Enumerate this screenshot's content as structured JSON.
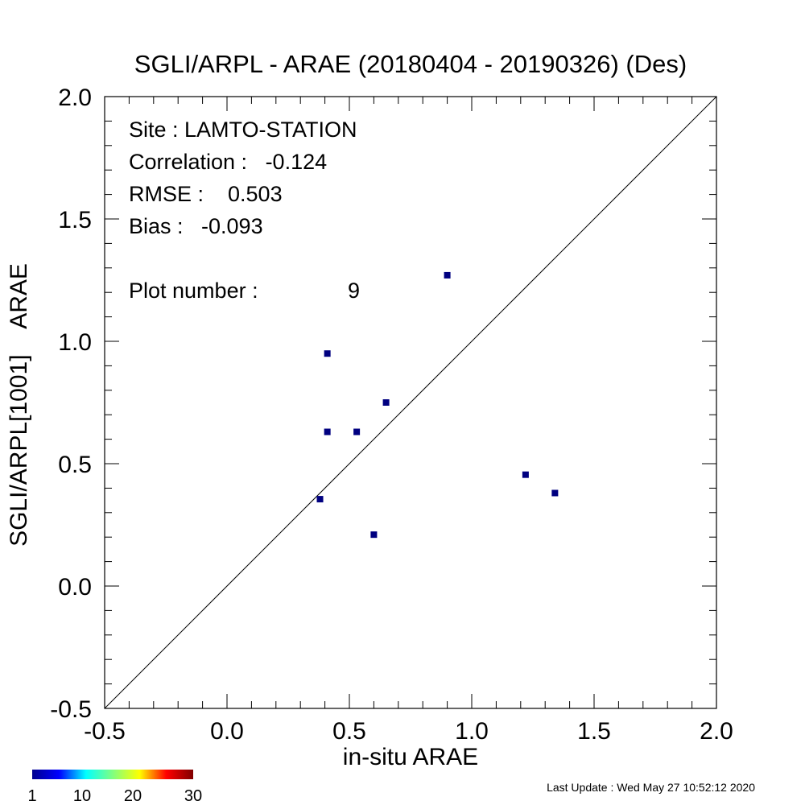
{
  "chart_data": {
    "type": "scatter",
    "title": "SGLI/ARPL - ARAE (20180404 - 20190326) (Des)",
    "xlabel": "in-situ ARAE",
    "ylabel": "SGLI/ARPL[1001]    ARAE",
    "xlim": [
      -0.5,
      2.0
    ],
    "ylim": [
      -0.5,
      2.0
    ],
    "x_ticks": [
      "-0.5",
      "0.0",
      "0.5",
      "1.0",
      "1.5",
      "2.0"
    ],
    "y_ticks": [
      "-0.5",
      "0.0",
      "0.5",
      "1.0",
      "1.5",
      "2.0"
    ],
    "reference_line": "1:1",
    "marker_color": "#000080",
    "points": [
      {
        "x": 0.9,
        "y": 1.27
      },
      {
        "x": 0.41,
        "y": 0.95
      },
      {
        "x": 0.65,
        "y": 0.75
      },
      {
        "x": 0.41,
        "y": 0.63
      },
      {
        "x": 0.53,
        "y": 0.63
      },
      {
        "x": 1.22,
        "y": 0.455
      },
      {
        "x": 1.34,
        "y": 0.38
      },
      {
        "x": 0.38,
        "y": 0.355
      },
      {
        "x": 0.6,
        "y": 0.21
      }
    ],
    "annotations": {
      "site": "Site : LAMTO-STATION",
      "correlation": "Correlation :   -0.124",
      "rmse": "RMSE :    0.503",
      "bias": "Bias :   -0.093",
      "plot_number_label": "Plot number :",
      "plot_number_value": "9"
    },
    "colorbar": {
      "colors": [
        "#00008f",
        "#0000ff",
        "#00ffff",
        "#80ff80",
        "#ffff00",
        "#ff0000",
        "#800000"
      ],
      "ticks": [
        "1",
        "10",
        "20",
        "30"
      ]
    }
  },
  "footer": {
    "last_update": "Last Update : Wed May 27 10:52:12 2020"
  }
}
